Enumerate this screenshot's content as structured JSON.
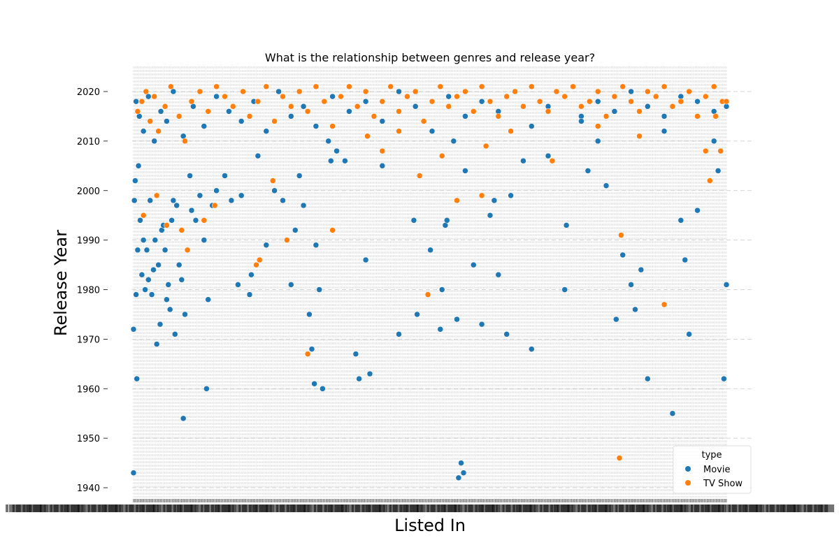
{
  "chart_data": {
    "type": "scatter",
    "title": "What is the relationship between genres and release year?",
    "xlabel": "Listed In",
    "ylabel": "Release Year",
    "ylim": [
      1938,
      2025
    ],
    "yticks": [
      1940,
      1950,
      1960,
      1970,
      1980,
      1990,
      2000,
      2010,
      2020
    ],
    "grid": true,
    "legend_position": "lower-right",
    "legend_title": "type",
    "x_category_count": 460,
    "colors": {
      "Movie": "#1f77b4",
      "TV Show": "#ff7f0e"
    },
    "series": [
      {
        "name": "Movie",
        "points": [
          [
            0,
            1943
          ],
          [
            0,
            1972
          ],
          [
            1,
            1998
          ],
          [
            2,
            2002
          ],
          [
            3,
            1979
          ],
          [
            4,
            1962
          ],
          [
            5,
            1988
          ],
          [
            6,
            2005
          ],
          [
            8,
            1994
          ],
          [
            10,
            1983
          ],
          [
            12,
            1990
          ],
          [
            14,
            1980
          ],
          [
            16,
            1988
          ],
          [
            18,
            1982
          ],
          [
            20,
            1998
          ],
          [
            22,
            1979
          ],
          [
            24,
            1984
          ],
          [
            26,
            1990
          ],
          [
            28,
            1969
          ],
          [
            30,
            1985
          ],
          [
            32,
            1973
          ],
          [
            34,
            1992
          ],
          [
            36,
            1993
          ],
          [
            38,
            1988
          ],
          [
            40,
            1978
          ],
          [
            42,
            1981
          ],
          [
            44,
            1976
          ],
          [
            46,
            1994
          ],
          [
            48,
            1998
          ],
          [
            50,
            1971
          ],
          [
            52,
            1997
          ],
          [
            55,
            1985
          ],
          [
            58,
            1982
          ],
          [
            60,
            1954
          ],
          [
            62,
            1975
          ],
          [
            65,
            1988
          ],
          [
            68,
            2003
          ],
          [
            70,
            1996
          ],
          [
            75,
            1994
          ],
          [
            80,
            1999
          ],
          [
            85,
            1990
          ],
          [
            88,
            1960
          ],
          [
            90,
            1978
          ],
          [
            95,
            1997
          ],
          [
            100,
            2000
          ],
          [
            110,
            2003
          ],
          [
            118,
            1998
          ],
          [
            126,
            1981
          ],
          [
            130,
            1999
          ],
          [
            140,
            1979
          ],
          [
            142,
            1983
          ],
          [
            150,
            2007
          ],
          [
            160,
            1989
          ],
          [
            170,
            2000
          ],
          [
            180,
            1998
          ],
          [
            190,
            1981
          ],
          [
            195,
            1992
          ],
          [
            200,
            2003
          ],
          [
            205,
            1997
          ],
          [
            212,
            1975
          ],
          [
            215,
            1968
          ],
          [
            218,
            1961
          ],
          [
            220,
            1989
          ],
          [
            224,
            1980
          ],
          [
            228,
            1960
          ],
          [
            235,
            2010
          ],
          [
            238,
            2006
          ],
          [
            245,
            2008
          ],
          [
            255,
            2006
          ],
          [
            268,
            1967
          ],
          [
            272,
            1962
          ],
          [
            280,
            1986
          ],
          [
            285,
            1963
          ],
          [
            300,
            2005
          ],
          [
            320,
            1971
          ],
          [
            338,
            1994
          ],
          [
            342,
            1975
          ],
          [
            358,
            1988
          ],
          [
            370,
            1972
          ],
          [
            372,
            1980
          ],
          [
            376,
            1993
          ],
          [
            378,
            1994
          ],
          [
            386,
            2010
          ],
          [
            390,
            1974
          ],
          [
            392,
            1942
          ],
          [
            395,
            1945
          ],
          [
            398,
            1943
          ],
          [
            400,
            2004
          ],
          [
            410,
            1985
          ],
          [
            420,
            1973
          ],
          [
            430,
            1995
          ],
          [
            435,
            1998
          ],
          [
            440,
            1983
          ],
          [
            450,
            1971
          ],
          [
            455,
            1999
          ],
          [
            470,
            2006
          ],
          [
            480,
            1968
          ],
          [
            500,
            2007
          ],
          [
            520,
            1980
          ],
          [
            522,
            1993
          ],
          [
            540,
            2015
          ],
          [
            548,
            2004
          ],
          [
            560,
            2010
          ],
          [
            570,
            2001
          ],
          [
            582,
            1974
          ],
          [
            590,
            1987
          ],
          [
            600,
            1981
          ],
          [
            605,
            1976
          ],
          [
            612,
            1984
          ],
          [
            620,
            1962
          ],
          [
            640,
            2012
          ],
          [
            650,
            1955
          ],
          [
            660,
            1994
          ],
          [
            665,
            1986
          ],
          [
            670,
            1971
          ],
          [
            680,
            1996
          ],
          [
            700,
            2010
          ],
          [
            705,
            2004
          ],
          [
            712,
            1962
          ],
          [
            715,
            1981
          ],
          [
            3,
            2018
          ],
          [
            7,
            2015
          ],
          [
            12,
            2012
          ],
          [
            18,
            2019
          ],
          [
            25,
            2010
          ],
          [
            33,
            2016
          ],
          [
            40,
            2014
          ],
          [
            48,
            2020
          ],
          [
            60,
            2011
          ],
          [
            72,
            2017
          ],
          [
            85,
            2013
          ],
          [
            100,
            2019
          ],
          [
            115,
            2016
          ],
          [
            130,
            2014
          ],
          [
            145,
            2018
          ],
          [
            160,
            2012
          ],
          [
            175,
            2020
          ],
          [
            190,
            2015
          ],
          [
            205,
            2017
          ],
          [
            220,
            2013
          ],
          [
            240,
            2019
          ],
          [
            260,
            2016
          ],
          [
            280,
            2018
          ],
          [
            300,
            2014
          ],
          [
            320,
            2020
          ],
          [
            340,
            2017
          ],
          [
            360,
            2012
          ],
          [
            380,
            2019
          ],
          [
            400,
            2015
          ],
          [
            420,
            2018
          ],
          [
            440,
            2016
          ],
          [
            460,
            2020
          ],
          [
            480,
            2013
          ],
          [
            500,
            2017
          ],
          [
            520,
            2019
          ],
          [
            540,
            2014
          ],
          [
            560,
            2018
          ],
          [
            580,
            2016
          ],
          [
            600,
            2020
          ],
          [
            620,
            2017
          ],
          [
            640,
            2015
          ],
          [
            660,
            2019
          ],
          [
            680,
            2018
          ],
          [
            700,
            2016
          ],
          [
            715,
            2017
          ]
        ]
      },
      {
        "name": "TV Show",
        "points": [
          [
            5,
            2016
          ],
          [
            10,
            2018
          ],
          [
            15,
            2020
          ],
          [
            20,
            2014
          ],
          [
            25,
            2019
          ],
          [
            30,
            2012
          ],
          [
            38,
            2017
          ],
          [
            45,
            2021
          ],
          [
            55,
            2015
          ],
          [
            62,
            2010
          ],
          [
            70,
            2018
          ],
          [
            80,
            2020
          ],
          [
            90,
            2016
          ],
          [
            100,
            2021
          ],
          [
            110,
            2019
          ],
          [
            120,
            2017
          ],
          [
            132,
            2020
          ],
          [
            140,
            2015
          ],
          [
            150,
            2018
          ],
          [
            160,
            2021
          ],
          [
            170,
            2014
          ],
          [
            180,
            2019
          ],
          [
            190,
            2017
          ],
          [
            200,
            2020
          ],
          [
            210,
            2016
          ],
          [
            220,
            2021
          ],
          [
            230,
            2018
          ],
          [
            240,
            2013
          ],
          [
            250,
            2019
          ],
          [
            260,
            2021
          ],
          [
            270,
            2017
          ],
          [
            280,
            2020
          ],
          [
            290,
            2015
          ],
          [
            300,
            2018
          ],
          [
            310,
            2021
          ],
          [
            320,
            2016
          ],
          [
            330,
            2019
          ],
          [
            340,
            2020
          ],
          [
            350,
            2014
          ],
          [
            360,
            2018
          ],
          [
            370,
            2021
          ],
          [
            380,
            2017
          ],
          [
            390,
            2019
          ],
          [
            400,
            2020
          ],
          [
            410,
            2016
          ],
          [
            420,
            2021
          ],
          [
            430,
            2018
          ],
          [
            440,
            2015
          ],
          [
            450,
            2019
          ],
          [
            460,
            2020
          ],
          [
            470,
            2017
          ],
          [
            480,
            2021
          ],
          [
            490,
            2018
          ],
          [
            500,
            2016
          ],
          [
            510,
            2020
          ],
          [
            520,
            2019
          ],
          [
            530,
            2021
          ],
          [
            540,
            2017
          ],
          [
            550,
            2018
          ],
          [
            560,
            2020
          ],
          [
            570,
            2015
          ],
          [
            580,
            2019
          ],
          [
            590,
            2021
          ],
          [
            600,
            2018
          ],
          [
            610,
            2016
          ],
          [
            620,
            2020
          ],
          [
            630,
            2019
          ],
          [
            640,
            2021
          ],
          [
            650,
            2017
          ],
          [
            660,
            2018
          ],
          [
            670,
            2020
          ],
          [
            680,
            2015
          ],
          [
            690,
            2019
          ],
          [
            700,
            2021
          ],
          [
            710,
            2018
          ],
          [
            715,
            2018
          ],
          [
            12,
            1995
          ],
          [
            28,
            1999
          ],
          [
            40,
            1993
          ],
          [
            58,
            1992
          ],
          [
            65,
            1988
          ],
          [
            85,
            1994
          ],
          [
            98,
            1997
          ],
          [
            148,
            1985
          ],
          [
            152,
            1986
          ],
          [
            168,
            2002
          ],
          [
            210,
            1967
          ],
          [
            185,
            1990
          ],
          [
            240,
            1992
          ],
          [
            355,
            1979
          ],
          [
            390,
            1998
          ],
          [
            420,
            1999
          ],
          [
            588,
            1991
          ],
          [
            586,
            1946
          ],
          [
            640,
            1977
          ],
          [
            695,
            2002
          ],
          [
            282,
            2011
          ],
          [
            300,
            2008
          ],
          [
            320,
            2012
          ],
          [
            345,
            2003
          ],
          [
            372,
            2007
          ],
          [
            425,
            2009
          ],
          [
            455,
            2012
          ],
          [
            505,
            2006
          ],
          [
            560,
            2013
          ],
          [
            610,
            2011
          ],
          [
            690,
            2008
          ],
          [
            702,
            2015
          ],
          [
            708,
            2008
          ]
        ]
      }
    ]
  },
  "legend": {
    "title": "type",
    "items": [
      {
        "label": "Movie",
        "color": "#1f77b4"
      },
      {
        "label": "TV Show",
        "color": "#ff7f0e"
      }
    ]
  }
}
